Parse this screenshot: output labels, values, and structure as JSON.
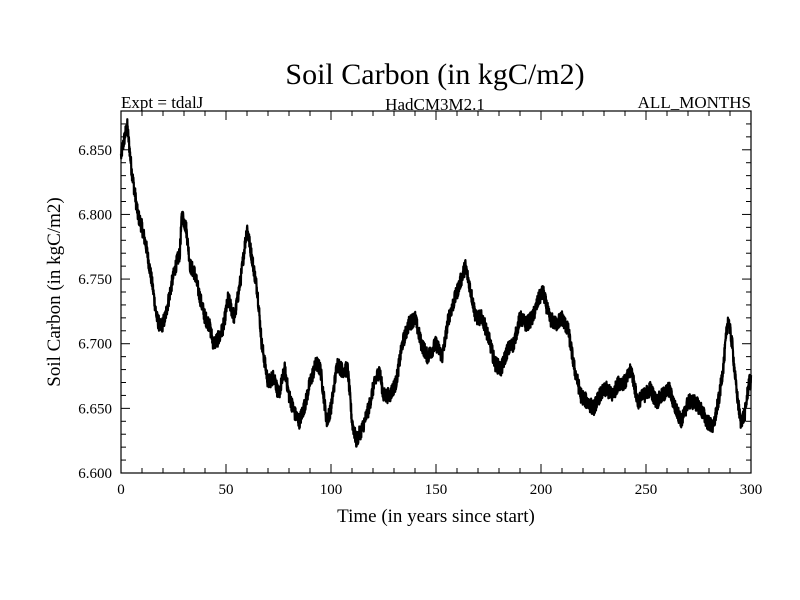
{
  "chart_data": {
    "type": "line",
    "title": "Soil Carbon (in kgC/m2)",
    "subtitle_left": "Expt = tdalJ",
    "subtitle_center": "HadCM3M2.1",
    "subtitle_right": "ALL_MONTHS",
    "xlabel": "Time (in years since start)",
    "ylabel": "Soil Carbon (in kgC/m2)",
    "xlim": [
      0,
      300
    ],
    "ylim": [
      6.6,
      6.88
    ],
    "xticks": [
      0,
      50,
      100,
      150,
      200,
      250,
      300
    ],
    "yticks": [
      6.6,
      6.65,
      6.7,
      6.75,
      6.8,
      6.85
    ],
    "xtick_labels": [
      "0",
      "50",
      "100",
      "150",
      "200",
      "250",
      "300"
    ],
    "ytick_labels": [
      "6.600",
      "6.650",
      "6.700",
      "6.750",
      "6.800",
      "6.850"
    ],
    "noise_amplitude": 0.012,
    "series": [
      {
        "name": "Soil Carbon",
        "x": [
          0,
          2,
          3,
          5,
          8,
          10,
          12,
          15,
          17,
          19,
          21,
          24,
          26,
          28,
          29,
          31,
          33,
          35,
          37,
          40,
          42,
          44,
          47,
          49,
          51,
          54,
          57,
          60,
          62,
          65,
          67,
          70,
          73,
          75,
          78,
          80,
          83,
          85,
          88,
          90,
          93,
          95,
          98,
          100,
          103,
          105,
          108,
          110,
          112,
          115,
          118,
          120,
          123,
          125,
          128,
          131,
          134,
          137,
          140,
          143,
          146,
          150,
          153,
          156,
          159,
          162,
          164,
          166,
          169,
          172,
          175,
          178,
          181,
          184,
          187,
          190,
          193,
          196,
          199,
          201,
          204,
          207,
          210,
          213,
          216,
          219,
          222,
          225,
          228,
          231,
          234,
          237,
          240,
          243,
          246,
          249,
          252,
          255,
          258,
          261,
          264,
          267,
          270,
          273,
          276,
          279,
          282,
          285,
          287,
          289,
          291,
          293,
          295,
          297,
          299
        ],
        "y": [
          6.845,
          6.862,
          6.868,
          6.835,
          6.8,
          6.79,
          6.775,
          6.745,
          6.72,
          6.712,
          6.72,
          6.745,
          6.76,
          6.77,
          6.8,
          6.79,
          6.76,
          6.755,
          6.74,
          6.72,
          6.715,
          6.7,
          6.705,
          6.715,
          6.735,
          6.72,
          6.75,
          6.79,
          6.77,
          6.74,
          6.7,
          6.67,
          6.675,
          6.66,
          6.68,
          6.66,
          6.645,
          6.64,
          6.655,
          6.67,
          6.685,
          6.68,
          6.64,
          6.65,
          6.685,
          6.68,
          6.68,
          6.64,
          6.625,
          6.635,
          6.65,
          6.665,
          6.68,
          6.66,
          6.66,
          6.67,
          6.7,
          6.715,
          6.72,
          6.7,
          6.69,
          6.7,
          6.69,
          6.72,
          6.735,
          6.75,
          6.76,
          6.745,
          6.72,
          6.72,
          6.705,
          6.685,
          6.68,
          6.695,
          6.7,
          6.72,
          6.715,
          6.72,
          6.735,
          6.74,
          6.72,
          6.715,
          6.72,
          6.71,
          6.68,
          6.66,
          6.655,
          6.65,
          6.66,
          6.665,
          6.66,
          6.67,
          6.67,
          6.68,
          6.655,
          6.66,
          6.665,
          6.655,
          6.66,
          6.665,
          6.65,
          6.64,
          6.655,
          6.655,
          6.65,
          6.64,
          6.635,
          6.66,
          6.685,
          6.72,
          6.7,
          6.665,
          6.64,
          6.645,
          6.67
        ]
      }
    ]
  }
}
